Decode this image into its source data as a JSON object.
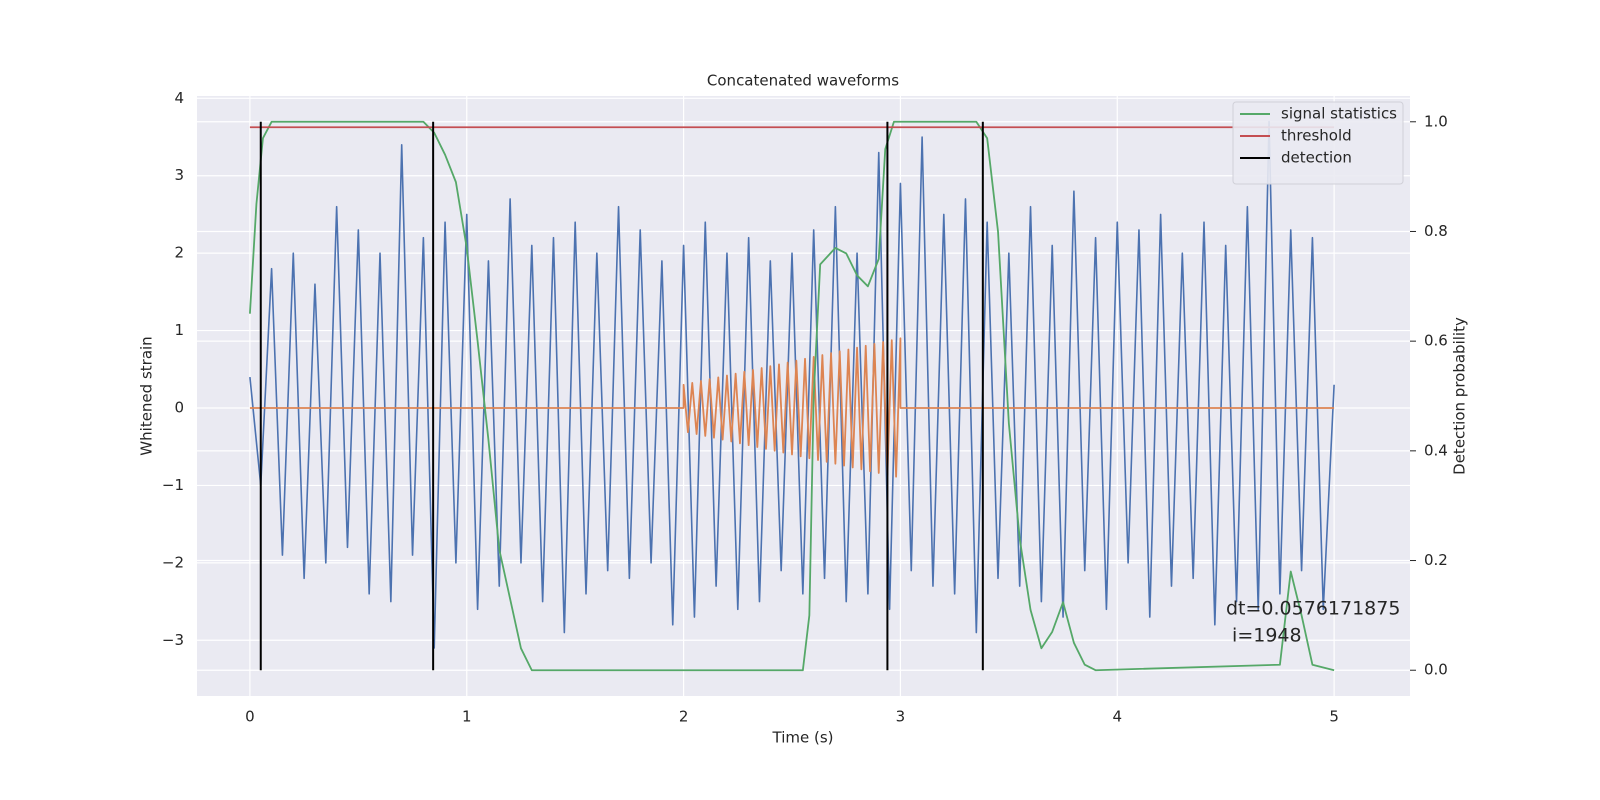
{
  "chart_data": {
    "type": "line",
    "title": "Concatenated waveforms",
    "xlabel": "Time (s)",
    "ylabel": "Whitened strain",
    "y2label": "Detection probability",
    "xlim": [
      -0.244,
      5.35
    ],
    "ylim": [
      -3.72,
      4.03
    ],
    "y2lim": [
      -0.047,
      1.047
    ],
    "xticks": [
      0,
      1,
      2,
      3,
      4,
      5
    ],
    "yticks": [
      {
        "value": -3,
        "label": "−3"
      },
      {
        "value": -2,
        "label": "−2"
      },
      {
        "value": -1,
        "label": "−1"
      },
      0,
      1,
      2,
      3,
      4
    ],
    "y2ticks": [
      {
        "value": 0,
        "label": "0.0"
      },
      0.2,
      0.4,
      0.6,
      0.8,
      {
        "value": 1,
        "label": "1.0"
      }
    ],
    "grid": true,
    "legend": "upper right",
    "series": [
      {
        "color": "#4c72b0",
        "x": [
          0,
          0.05,
          0.1,
          0.15,
          0.2,
          0.25,
          0.3,
          0.35,
          0.4,
          0.45,
          0.5,
          0.55,
          0.6,
          0.65,
          0.7,
          0.75,
          0.8,
          0.85,
          0.9,
          0.95,
          1,
          1.05,
          1.1,
          1.15,
          1.2,
          1.25,
          1.3,
          1.35,
          1.4,
          1.45,
          1.5,
          1.55,
          1.6,
          1.65,
          1.7,
          1.75,
          1.8,
          1.85,
          1.9,
          1.95,
          2,
          2.05,
          2.1,
          2.15,
          2.2,
          2.25,
          2.3,
          2.35,
          2.4,
          2.45,
          2.5,
          2.55,
          2.6,
          2.65,
          2.7,
          2.75,
          2.8,
          2.85,
          2.9,
          2.95,
          3,
          3.05,
          3.1,
          3.15,
          3.2,
          3.25,
          3.3,
          3.35,
          3.4,
          3.45,
          3.5,
          3.55,
          3.6,
          3.65,
          3.7,
          3.75,
          3.8,
          3.85,
          3.9,
          3.95,
          4,
          4.05,
          4.1,
          4.15,
          4.2,
          4.25,
          4.3,
          4.35,
          4.4,
          4.45,
          4.5,
          4.55,
          4.6,
          4.65,
          4.7,
          4.75,
          4.8,
          4.85,
          4.9,
          4.95,
          5
        ],
        "values": [
          0.4,
          -1.0,
          1.8,
          -1.9,
          2.0,
          -2.2,
          1.6,
          -2.0,
          2.6,
          -1.8,
          2.3,
          -2.4,
          2.0,
          -2.5,
          3.4,
          -1.9,
          2.2,
          -3.1,
          2.4,
          -2.0,
          2.5,
          -2.6,
          1.9,
          -2.3,
          2.7,
          -2.0,
          2.1,
          -2.5,
          2.2,
          -2.9,
          2.4,
          -2.4,
          2.0,
          -2.1,
          2.6,
          -2.2,
          2.3,
          -2.0,
          1.9,
          -2.8,
          2.1,
          -2.7,
          2.4,
          -2.3,
          2.0,
          -2.6,
          2.2,
          -2.5,
          1.9,
          -2.1,
          2.0,
          -2.4,
          2.3,
          -2.2,
          2.6,
          -2.5,
          2.0,
          -2.4,
          3.3,
          -2.6,
          2.9,
          -2.1,
          3.5,
          -2.3,
          2.5,
          -2.4,
          2.7,
          -2.9,
          2.4,
          -2.2,
          2.0,
          -2.3,
          2.6,
          -2.5,
          2.1,
          -2.7,
          2.8,
          -2.1,
          2.2,
          -2.6,
          2.4,
          -2.0,
          2.3,
          -2.7,
          2.5,
          -2.3,
          2.0,
          -2.2,
          2.4,
          -2.8,
          2.1,
          -2.5,
          2.6,
          -2.6,
          3.7,
          -2.4,
          2.3,
          -2.1,
          2.2,
          -2.6,
          0.3
        ]
      },
      {
        "color": "#dd8452",
        "x": [
          0,
          2,
          2,
          2.02,
          2.04,
          2.06,
          2.08,
          2.1,
          2.12,
          2.14,
          2.16,
          2.18,
          2.2,
          2.22,
          2.24,
          2.26,
          2.28,
          2.3,
          2.32,
          2.34,
          2.36,
          2.38,
          2.4,
          2.42,
          2.44,
          2.46,
          2.48,
          2.5,
          2.52,
          2.54,
          2.56,
          2.58,
          2.6,
          2.62,
          2.64,
          2.66,
          2.68,
          2.7,
          2.72,
          2.74,
          2.76,
          2.78,
          2.8,
          2.82,
          2.84,
          2.86,
          2.88,
          2.9,
          2.92,
          2.94,
          2.96,
          2.98,
          3,
          3,
          5
        ],
        "values": [
          0,
          0,
          0.3,
          -0.312,
          0.324,
          -0.336,
          0.348,
          -0.36,
          0.372,
          -0.384,
          0.396,
          -0.408,
          0.42,
          -0.432,
          0.444,
          -0.456,
          0.468,
          -0.48,
          0.492,
          -0.504,
          0.516,
          -0.528,
          0.54,
          -0.552,
          0.564,
          -0.576,
          0.588,
          -0.6,
          0.612,
          -0.624,
          0.636,
          -0.648,
          0.66,
          -0.672,
          0.684,
          -0.696,
          0.708,
          -0.72,
          0.732,
          -0.744,
          0.756,
          -0.768,
          0.78,
          -0.792,
          0.804,
          -0.816,
          0.828,
          -0.84,
          0.852,
          -0.864,
          0.876,
          -0.888,
          0.9,
          0,
          0
        ]
      },
      {
        "name": "signal statistics",
        "color": "#55a868",
        "axis": "y2",
        "x": [
          0,
          0.03,
          0.06,
          0.1,
          0.8,
          0.85,
          0.9,
          0.95,
          1,
          1.05,
          1.1,
          1.15,
          1.2,
          1.25,
          1.3,
          2.55,
          2.58,
          2.6,
          2.63,
          2.7,
          2.75,
          2.8,
          2.85,
          2.9,
          2.93,
          2.97,
          3.35,
          3.4,
          3.45,
          3.5,
          3.55,
          3.6,
          3.65,
          3.7,
          3.75,
          3.8,
          3.85,
          3.9,
          4.75,
          4.8,
          4.85,
          4.9,
          5
        ],
        "values": [
          0.65,
          0.85,
          0.97,
          1.0,
          1.0,
          0.98,
          0.94,
          0.89,
          0.77,
          0.6,
          0.42,
          0.22,
          0.13,
          0.04,
          0.0,
          0.0,
          0.1,
          0.5,
          0.74,
          0.77,
          0.76,
          0.72,
          0.7,
          0.75,
          0.95,
          1.0,
          1.0,
          0.97,
          0.8,
          0.45,
          0.24,
          0.11,
          0.04,
          0.07,
          0.124,
          0.05,
          0.01,
          0.0,
          0.01,
          0.18,
          0.1,
          0.01,
          0.0
        ]
      },
      {
        "name": "threshold",
        "color": "#c44e52",
        "axis": "y2",
        "x": [
          0,
          5
        ],
        "values": [
          0.99,
          0.99
        ]
      },
      {
        "name": "detection",
        "color": "#000000",
        "axis": "y2",
        "vlines": true,
        "x": [
          0.05,
          0.845,
          2.94,
          3.38
        ],
        "span": [
          0,
          1
        ]
      }
    ],
    "annotation": [
      "dt=0.0576171875",
      " i=1948"
    ]
  }
}
